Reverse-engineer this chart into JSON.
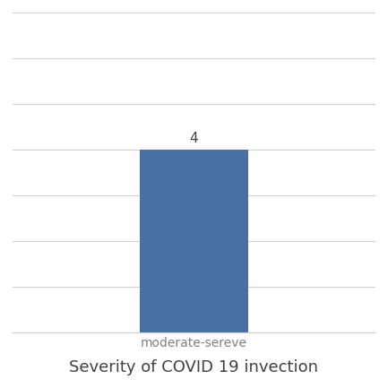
{
  "categories": [
    "moderate-sereve"
  ],
  "values": [
    4
  ],
  "bar_color": "#4a6fa5",
  "bar_width": 0.3,
  "value_label": "4",
  "xlabel": "Severity of COVID 19 invection",
  "ylabel": "",
  "ylim": [
    0,
    7
  ],
  "yticks": [
    0,
    1,
    2,
    3,
    4,
    5,
    6,
    7
  ],
  "xlim": [
    -0.5,
    0.5
  ],
  "background_color": "#ffffff",
  "grid_color": "#d0d0d0",
  "xlabel_fontsize": 13,
  "xtick_label_fontsize": 10,
  "value_fontsize": 11,
  "xlabel_color": "#404040",
  "xtick_label_color": "#808080",
  "value_label_color": "#404040"
}
